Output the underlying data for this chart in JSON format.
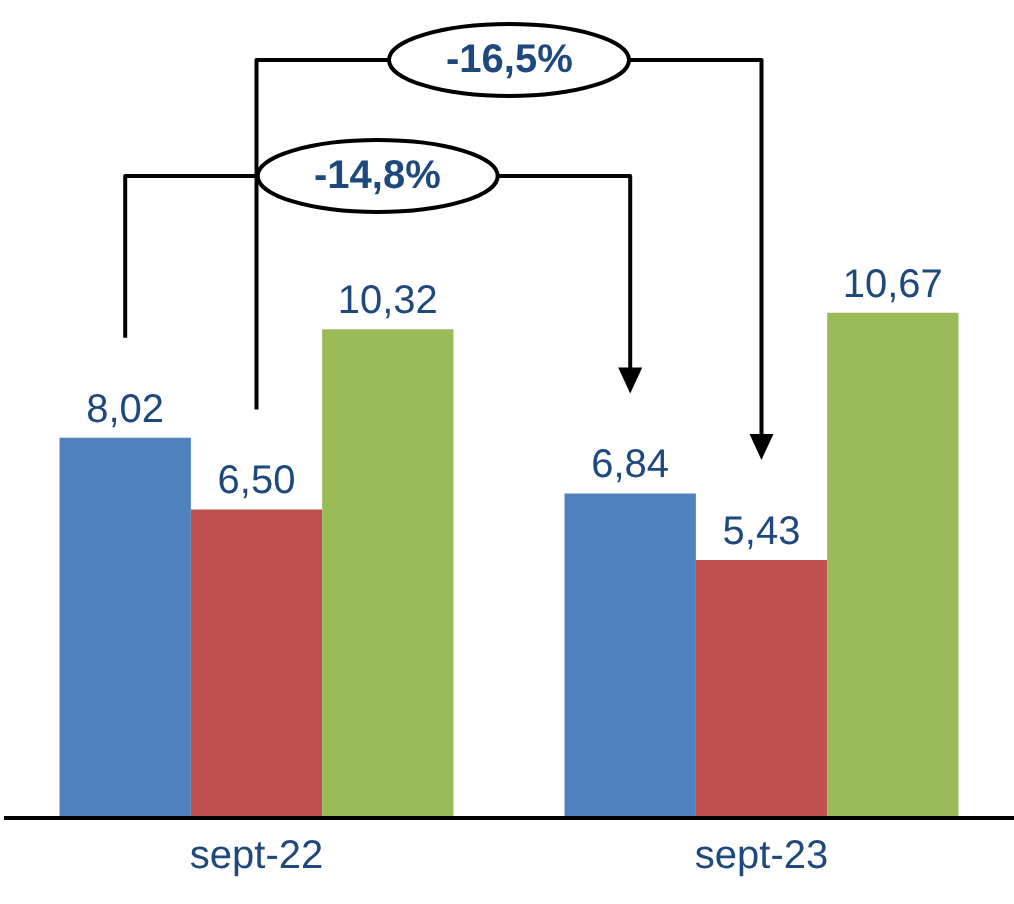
{
  "chart_data": {
    "type": "bar",
    "categories": [
      "sept-22",
      "sept-23"
    ],
    "series": [
      {
        "color": "#4f81bd",
        "values": [
          8.02,
          6.84
        ],
        "value_labels": [
          "8,02",
          "6,84"
        ]
      },
      {
        "color": "#c0504d",
        "values": [
          6.5,
          5.43
        ],
        "value_labels": [
          "6,50",
          "5,43"
        ]
      },
      {
        "color": "#9bbb59",
        "values": [
          10.32,
          10.67
        ],
        "value_labels": [
          "10,32",
          "10,67"
        ]
      }
    ],
    "ylim": [
      0,
      17.3
    ],
    "tick_labels": "x",
    "grid": false,
    "legend": false,
    "annotations": [
      "-14,8%",
      "-16,5%"
    ]
  }
}
